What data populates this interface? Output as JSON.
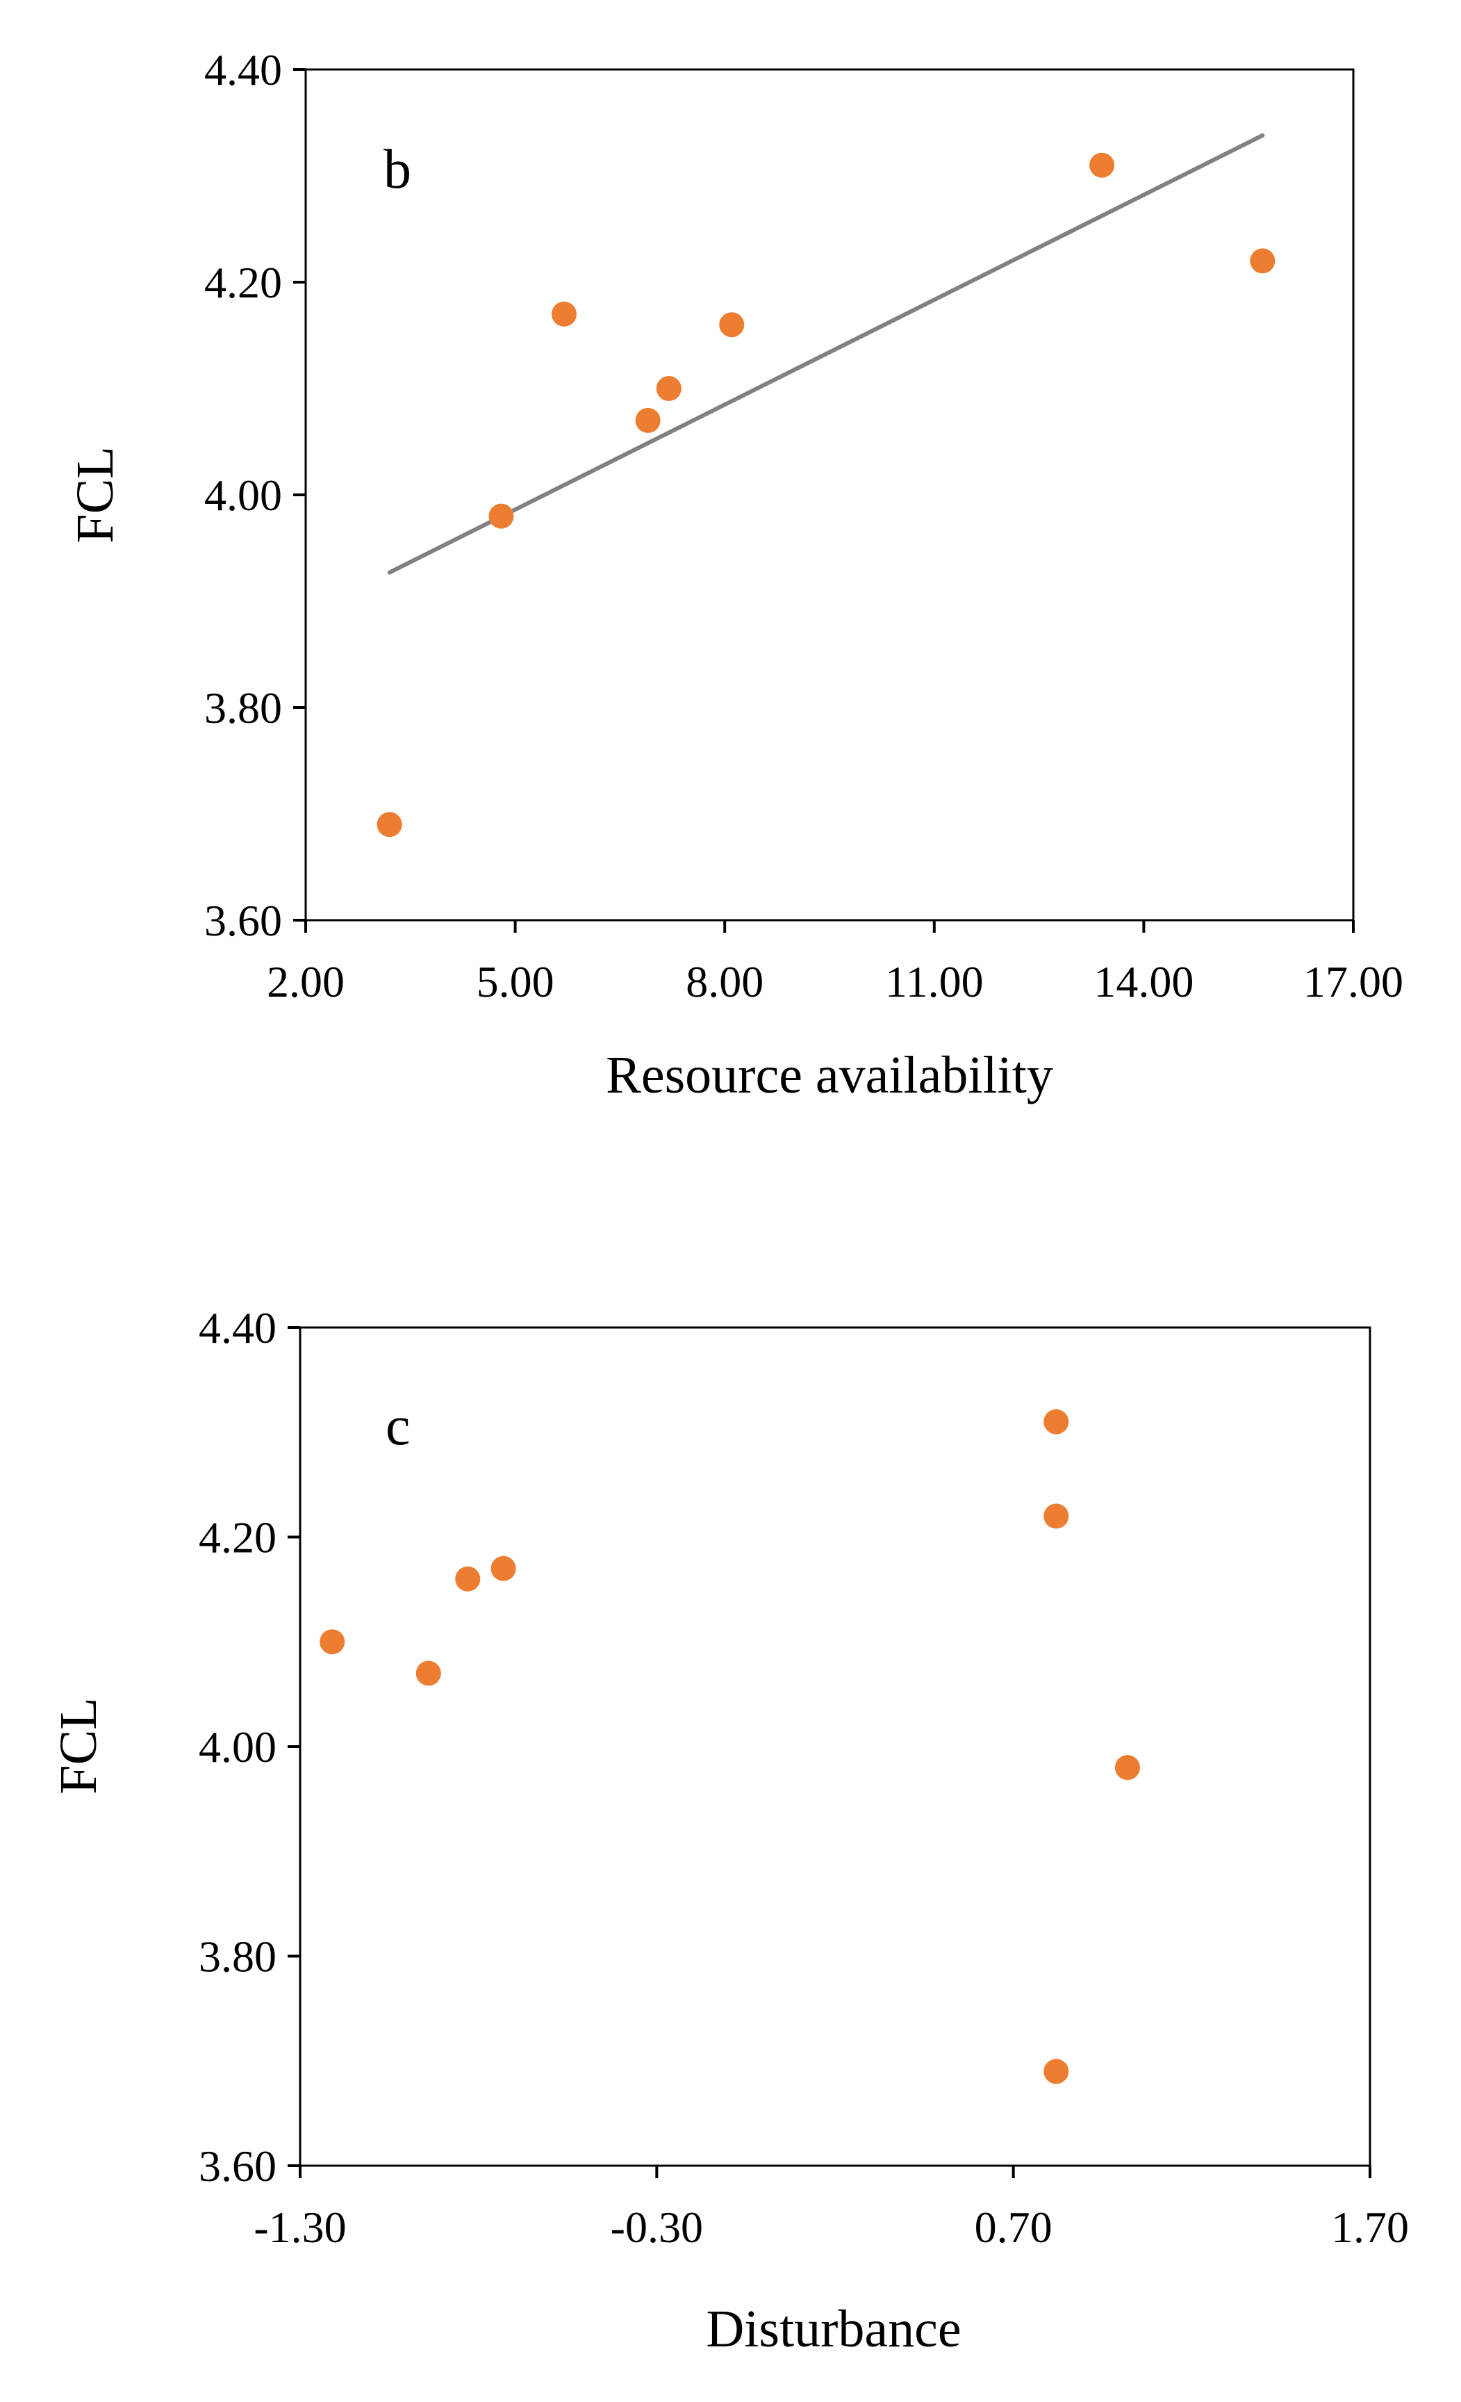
{
  "chart_data": [
    {
      "type": "scatter",
      "panel_label": "b",
      "xlabel": "Resource availability",
      "ylabel": "FCL",
      "xlim": [
        2.0,
        17.0
      ],
      "ylim": [
        3.6,
        4.4
      ],
      "x_ticks": [
        "2.00",
        "5.00",
        "8.00",
        "11.00",
        "14.00",
        "17.00"
      ],
      "y_ticks": [
        "4.40",
        "4.20",
        "4.00",
        "3.80",
        "3.60"
      ],
      "x_tick_values": [
        2,
        5,
        8,
        11,
        14,
        17
      ],
      "y_tick_values": [
        4.4,
        4.2,
        4.0,
        3.8,
        3.6
      ],
      "grid": false,
      "series": [
        {
          "x": [
            3.2,
            4.8,
            5.7,
            6.9,
            7.2,
            8.1,
            13.4,
            15.7
          ],
          "y": [
            3.69,
            3.98,
            4.17,
            4.07,
            4.1,
            4.16,
            4.31,
            4.22
          ]
        }
      ],
      "trendline": {
        "x": [
          3.2,
          15.7
        ],
        "y": [
          3.927,
          4.338
        ]
      },
      "marker_color": "#ED7D31",
      "trendline_color": "#808080"
    },
    {
      "type": "scatter",
      "panel_label": "c",
      "xlabel": "Disturbance",
      "ylabel": "FCL",
      "xlim": [
        -1.3,
        1.7
      ],
      "ylim": [
        3.6,
        4.4
      ],
      "x_ticks": [
        "-1.30",
        "-0.30",
        "0.70",
        "1.70"
      ],
      "y_ticks": [
        "4.40",
        "4.20",
        "4.00",
        "3.80",
        "3.60"
      ],
      "x_tick_values": [
        -1.3,
        -0.3,
        0.7,
        1.7
      ],
      "y_tick_values": [
        4.4,
        4.2,
        4.0,
        3.8,
        3.6
      ],
      "grid": false,
      "series": [
        {
          "x": [
            -1.21,
            -0.94,
            -0.83,
            -0.73,
            0.82,
            0.82,
            0.82,
            1.02
          ],
          "y": [
            4.1,
            4.07,
            4.16,
            4.17,
            4.31,
            4.22,
            3.69,
            3.98
          ]
        }
      ],
      "marker_color": "#ED7D31"
    }
  ]
}
